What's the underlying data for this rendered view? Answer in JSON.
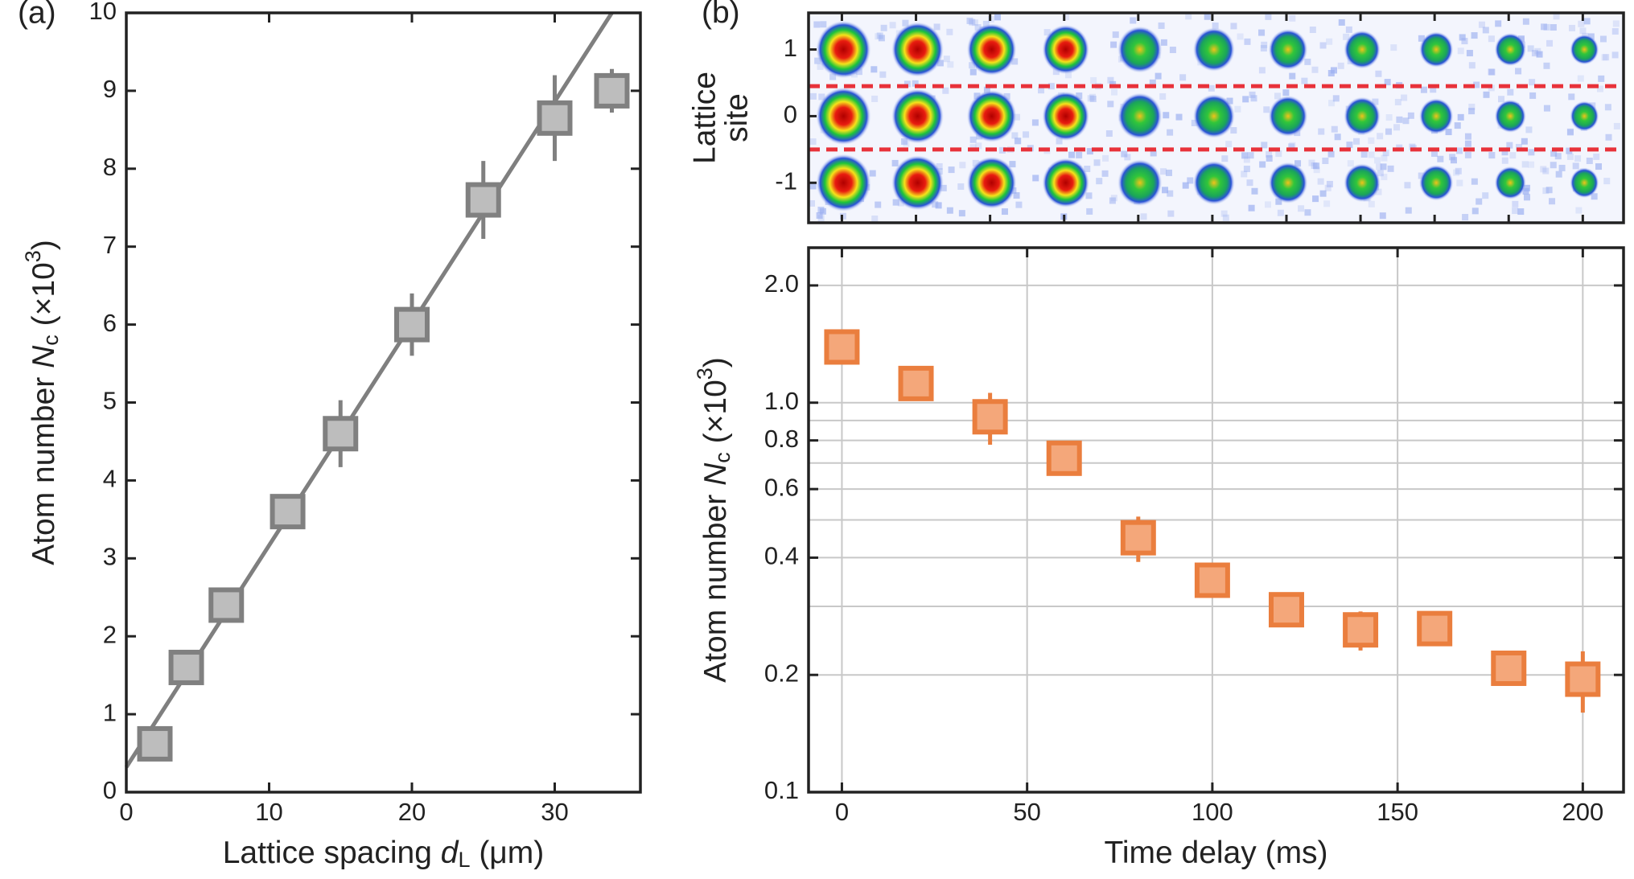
{
  "chart_data": [
    {
      "type": "scatter",
      "panel_label": "(a)",
      "xlabel": [
        "Lattice spacing ",
        "d",
        "L",
        " (μm)"
      ],
      "ylabel": [
        "Atom number ",
        "N",
        "c",
        " (×10",
        "3",
        ")"
      ],
      "x": [
        2,
        4.2,
        7,
        11.3,
        15,
        20,
        25,
        30,
        34
      ],
      "values": [
        0.62,
        1.6,
        2.4,
        3.6,
        4.6,
        6.0,
        7.6,
        8.65,
        9.0
      ],
      "errors": [
        0.1,
        0.1,
        0.1,
        0.1,
        0.43,
        0.4,
        0.5,
        0.55,
        0.28
      ],
      "fit": {
        "x": [
          0,
          34
        ],
        "values": [
          0.32,
          10
        ],
        "color": "#7f7f7f"
      },
      "color": "#bdbdbd",
      "edge_color": "#808080",
      "xlim": [
        0,
        36
      ],
      "xticks": [
        0,
        10,
        20,
        30
      ],
      "ylim": [
        0,
        10
      ],
      "yticks": [
        0,
        1,
        2,
        3,
        4,
        5,
        6,
        7,
        8,
        9,
        10
      ],
      "grid": false
    },
    {
      "type": "image",
      "panel_label": "(b)",
      "ylabel": [
        "Lattice",
        "site"
      ],
      "ylim": [
        1.55,
        -1.6
      ],
      "yticks": [
        1,
        0,
        -1
      ],
      "separators": [
        0.45,
        -0.5
      ],
      "separator_color": "#e8323a"
    },
    {
      "type": "scatter",
      "log_y": true,
      "xlabel": [
        "Time delay (ms)"
      ],
      "ylabel": [
        "Atom number ",
        "N",
        "c",
        " (×10",
        "3",
        ")"
      ],
      "x": [
        0,
        20,
        40,
        60,
        80,
        100,
        120,
        140,
        160,
        180,
        200
      ],
      "values": [
        1.39,
        1.12,
        0.92,
        0.72,
        0.45,
        0.35,
        0.294,
        0.261,
        0.263,
        0.208,
        0.195
      ],
      "errors": [
        0.13,
        0.05,
        0.14,
        0.07,
        0.06,
        0.02,
        0.02,
        0.03,
        0.02,
        0.01,
        0.035
      ],
      "color": "#f4a77a",
      "edge_color": "#ea7e3e",
      "xlim": [
        -9,
        211
      ],
      "xticks": [
        0,
        50,
        100,
        150,
        200
      ],
      "ylim": [
        0.1,
        2.5
      ],
      "yticks": [
        0.1,
        0.2,
        0.4,
        0.6,
        0.8,
        {
          "value": 1,
          "label": "1.0"
        },
        {
          "value": 2,
          "label": "2.0"
        }
      ],
      "minor_yticks": [
        0.3,
        0.5,
        0.7,
        0.9
      ],
      "grid": true
    }
  ]
}
